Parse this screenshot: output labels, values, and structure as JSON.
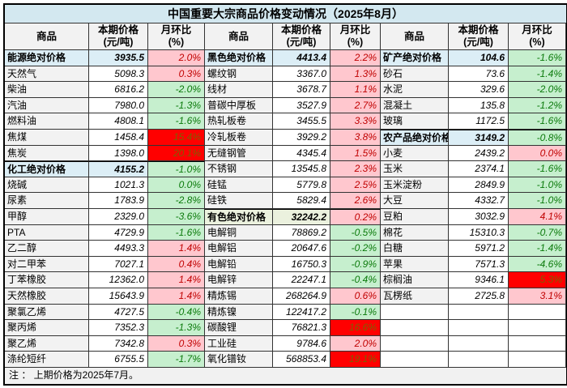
{
  "chart_data": {
    "type": "table",
    "title": "中国重要大宗商品价格变动情况（2025年8月）",
    "column_headers": {
      "commodity": "商品",
      "price_l1": "本期价格",
      "price_l2": "(元/吨)",
      "mom_l1": "月环比",
      "mom_l2": "(%)"
    },
    "note": "注 ： 上期价格为2025年7月。",
    "colors": {
      "title_bg": "#D3E8F0",
      "category_blue_bg": "#DCEEF6",
      "category_green_bg": "#EBF1DE",
      "name_col_bg": "#F2F2F2",
      "increase_bg": "#FFC7CE",
      "increase_text": "#C00000",
      "decrease_bg": "#C6EFCE",
      "decrease_text": "#0B7A0B",
      "surge_bg": "#FF0000",
      "note_bg": "#F1F1F1"
    },
    "groups": [
      {
        "rows": [
          {
            "n": "能源绝对价格",
            "p": "3935.5",
            "c": "2.0%",
            "t": "up",
            "k": "cat-blue"
          },
          {
            "n": "天然气",
            "p": "5098.3",
            "c": "0.3%",
            "t": "up"
          },
          {
            "n": "柴油",
            "p": "6816.2",
            "c": "-2.0%",
            "t": "down"
          },
          {
            "n": "汽油",
            "p": "7980.0",
            "c": "-1.3%",
            "t": "down"
          },
          {
            "n": "燃料油",
            "p": "4808.1",
            "c": "-1.6%",
            "t": "down"
          },
          {
            "n": "焦煤",
            "p": "1458.4",
            "c": "15.4%",
            "t": "surge"
          },
          {
            "n": "焦炭",
            "p": "1398.0",
            "c": "20.1%",
            "t": "surge"
          },
          {
            "n": "化工绝对价格",
            "p": "4155.2",
            "c": "-1.0%",
            "t": "down",
            "k": "cat-blue",
            "s": 1
          },
          {
            "n": "烧碱",
            "p": "1021.3",
            "c": "0.0%",
            "t": "down"
          },
          {
            "n": "尿素",
            "p": "1783.9",
            "c": "-2.8%",
            "t": "down"
          },
          {
            "n": "甲醇",
            "p": "2329.0",
            "c": "-3.6%",
            "t": "down"
          },
          {
            "n": "PTA",
            "p": "4729.9",
            "c": "-1.6%",
            "t": "down"
          },
          {
            "n": "乙二醇",
            "p": "4493.3",
            "c": "1.4%",
            "t": "up"
          },
          {
            "n": "对二甲苯",
            "p": "7027.1",
            "c": "0.4%",
            "t": "up"
          },
          {
            "n": "丁苯橡胶",
            "p": "12362.0",
            "c": "1.4%",
            "t": "up"
          },
          {
            "n": "天然橡胶",
            "p": "15643.9",
            "c": "1.4%",
            "t": "up"
          },
          {
            "n": "聚氯乙烯",
            "p": "4727.5",
            "c": "-0.4%",
            "t": "down"
          },
          {
            "n": "聚丙烯",
            "p": "7352.3",
            "c": "-1.3%",
            "t": "down"
          },
          {
            "n": "聚乙烯",
            "p": "7342.8",
            "c": "0.3%",
            "t": "up"
          },
          {
            "n": "涤纶短纤",
            "p": "6755.5",
            "c": "-1.7%",
            "t": "down"
          }
        ]
      },
      {
        "rows": [
          {
            "n": "黑色绝对价格",
            "p": "4413.4",
            "c": "2.2%",
            "t": "up",
            "k": "cat-blue"
          },
          {
            "n": "螺纹钢",
            "p": "3367.0",
            "c": "1.3%",
            "t": "up"
          },
          {
            "n": "线材",
            "p": "3678.7",
            "c": "1.1%",
            "t": "up"
          },
          {
            "n": "普碳中厚板",
            "p": "3527.9",
            "c": "2.7%",
            "t": "up"
          },
          {
            "n": "热轧板卷",
            "p": "3455.5",
            "c": "3.3%",
            "t": "up"
          },
          {
            "n": "冷轧板卷",
            "p": "3929.2",
            "c": "3.8%",
            "t": "up"
          },
          {
            "n": "无缝钢管",
            "p": "4345.4",
            "c": "1.5%",
            "t": "up"
          },
          {
            "n": "不锈钢",
            "p": "13545.8",
            "c": "2.3%",
            "t": "up"
          },
          {
            "n": "硅锰",
            "p": "5779.8",
            "c": "2.5%",
            "t": "up"
          },
          {
            "n": "硅铁",
            "p": "5829.4",
            "c": "2.6%",
            "t": "up"
          },
          {
            "n": "有色绝对价格",
            "p": "32242.2",
            "c": "0.2%",
            "t": "up",
            "k": "cat-green",
            "s": 1
          },
          {
            "n": "电解铜",
            "p": "78869.2",
            "c": "-0.5%",
            "t": "down"
          },
          {
            "n": "电解铝",
            "p": "20647.6",
            "c": "-0.2%",
            "t": "down"
          },
          {
            "n": "电解铅",
            "p": "16750.3",
            "c": "-0.9%",
            "t": "down"
          },
          {
            "n": "电解锌",
            "p": "22247.1",
            "c": "-0.4%",
            "t": "down"
          },
          {
            "n": "精炼锡",
            "p": "268264.9",
            "c": "0.6%",
            "t": "up"
          },
          {
            "n": "精炼镍",
            "p": "122417.2",
            "c": "-0.1%",
            "t": "down"
          },
          {
            "n": "碳酸锂",
            "p": "76821.3",
            "c": "16.6%",
            "t": "surge"
          },
          {
            "n": "工业硅",
            "p": "9784.6",
            "c": "2.0%",
            "t": "up"
          },
          {
            "n": "氧化镨钕",
            "p": "568853.4",
            "c": "19.1%",
            "t": "surge"
          }
        ]
      },
      {
        "rows": [
          {
            "n": "矿产绝对价格",
            "p": "104.6",
            "c": "-1.6%",
            "t": "down",
            "k": "cat-blue"
          },
          {
            "n": "砂石",
            "p": "73.6",
            "c": "-1.4%",
            "t": "down"
          },
          {
            "n": "水泥",
            "p": "329.6",
            "c": "-2.0%",
            "t": "down"
          },
          {
            "n": "混凝土",
            "p": "135.8",
            "c": "-1.2%",
            "t": "down"
          },
          {
            "n": "玻璃",
            "p": "1172.5",
            "c": "-1.6%",
            "t": "down"
          },
          {
            "n": "农产品绝对价格",
            "p": "3149.2",
            "c": "-0.8%",
            "t": "down",
            "k": "cat-blue",
            "s": 1
          },
          {
            "n": "小麦",
            "p": "2439.2",
            "c": "0.0%",
            "t": "up"
          },
          {
            "n": "玉米",
            "p": "2374.1",
            "c": "-1.6%",
            "t": "down"
          },
          {
            "n": "玉米淀粉",
            "p": "2849.9",
            "c": "-1.0%",
            "t": "down"
          },
          {
            "n": "大豆",
            "p": "4332.7",
            "c": "-1.0%",
            "t": "down"
          },
          {
            "n": "豆粕",
            "p": "3032.9",
            "c": "4.1%",
            "t": "up"
          },
          {
            "n": "棉花",
            "p": "15310.3",
            "c": "-0.7%",
            "t": "down"
          },
          {
            "n": "白糖",
            "p": "5971.2",
            "c": "-1.4%",
            "t": "down"
          },
          {
            "n": "苹果",
            "p": "7571.3",
            "c": "-4.6%",
            "t": "down"
          },
          {
            "n": "棕榈油",
            "p": "9346.1",
            "c": "5.3%",
            "t": "surge"
          },
          {
            "n": "瓦楞纸",
            "p": "2725.8",
            "c": "3.1%",
            "t": "up"
          },
          {
            "n": "",
            "p": "",
            "c": "",
            "t": "none",
            "k": "empty"
          },
          {
            "n": "",
            "p": "",
            "c": "",
            "t": "none",
            "k": "empty"
          },
          {
            "n": "",
            "p": "",
            "c": "",
            "t": "none",
            "k": "empty"
          },
          {
            "n": "",
            "p": "",
            "c": "",
            "t": "none",
            "k": "empty"
          }
        ]
      }
    ]
  }
}
